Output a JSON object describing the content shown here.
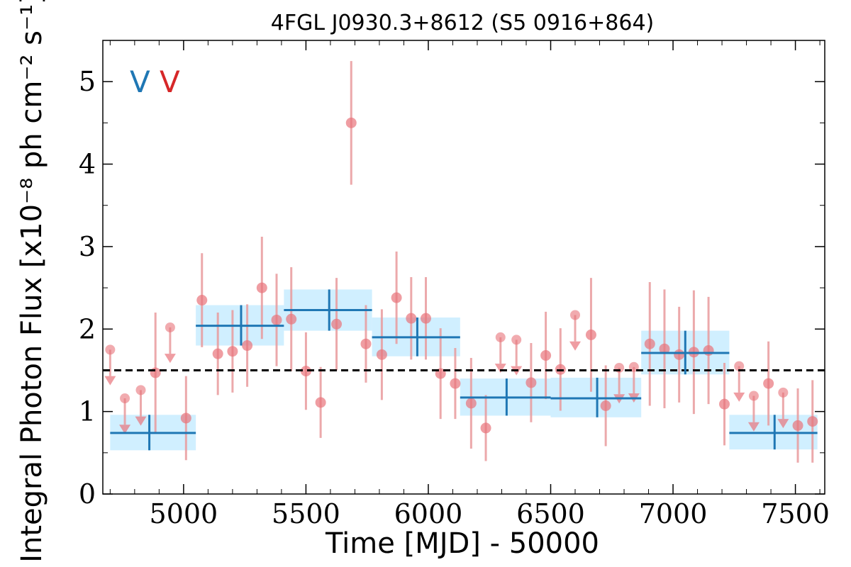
{
  "chart_data": {
    "type": "scatter",
    "title": "4FGL J0930.3+8612 (S5 0916+864)",
    "xlabel": "Time [MJD] - 50000",
    "ylabel": "Integral Photon Flux [x10⁻⁸ ph cm⁻² s⁻¹]",
    "xlim": [
      4670,
      7620
    ],
    "ylim": [
      0,
      5.5
    ],
    "xticks": [
      5000,
      5500,
      6000,
      6500,
      7000,
      7500
    ],
    "yticks": [
      0,
      1,
      2,
      3,
      4,
      5
    ],
    "grid": false,
    "mean_flux": 1.5,
    "colors": {
      "points": "#e8737a",
      "errorbars": "#e99a9c",
      "binned": "#1f77b4",
      "binned_band": "#cdeeff",
      "mean_line": "#000000"
    },
    "legend": {
      "position": "top-left",
      "entries": [
        {
          "label": "V",
          "color": "#1f77b4"
        },
        {
          "label": "V",
          "color": "#d62728"
        }
      ]
    },
    "series": [
      {
        "kind": "points",
        "points": [
          {
            "x": 5075,
            "y": 2.35,
            "err": 0.57
          },
          {
            "x": 5140,
            "y": 1.7,
            "err": 0.5
          },
          {
            "x": 5200,
            "y": 1.73,
            "err": 0.5
          },
          {
            "x": 5260,
            "y": 1.8,
            "err": 0.5
          },
          {
            "x": 5320,
            "y": 2.5,
            "err": 0.62
          },
          {
            "x": 5380,
            "y": 2.11,
            "err": 0.56
          },
          {
            "x": 5440,
            "y": 2.12,
            "err": 0.63
          },
          {
            "x": 5500,
            "y": 1.49,
            "err": 0.47
          },
          {
            "x": 5560,
            "y": 1.11,
            "err": 0.43
          },
          {
            "x": 5625,
            "y": 2.06,
            "err": 0.56
          },
          {
            "x": 5685,
            "y": 4.5,
            "err": 0.75
          },
          {
            "x": 5745,
            "y": 1.82,
            "err": 0.47
          },
          {
            "x": 5810,
            "y": 1.69,
            "err": 0.55
          },
          {
            "x": 5870,
            "y": 2.38,
            "err": 0.56
          },
          {
            "x": 5930,
            "y": 2.13,
            "err": 0.5
          },
          {
            "x": 5990,
            "y": 2.13,
            "err": 0.5
          },
          {
            "x": 6050,
            "y": 1.46,
            "err": 0.55
          },
          {
            "x": 6110,
            "y": 1.34,
            "err": 0.43
          },
          {
            "x": 6175,
            "y": 1.1,
            "err": 0.55
          },
          {
            "x": 6235,
            "y": 0.8,
            "err": 0.4
          },
          {
            "x": 6420,
            "y": 1.35,
            "err": 0.48
          },
          {
            "x": 6480,
            "y": 1.68,
            "err": 0.53
          },
          {
            "x": 6540,
            "y": 1.51,
            "err": 0.5
          },
          {
            "x": 6665,
            "y": 1.93,
            "err": 0.69
          },
          {
            "x": 6725,
            "y": 1.07,
            "err": 0.49
          },
          {
            "x": 6905,
            "y": 1.82,
            "err": 0.75
          },
          {
            "x": 6965,
            "y": 1.76,
            "err": 0.72
          },
          {
            "x": 7025,
            "y": 1.69,
            "err": 0.58
          },
          {
            "x": 7085,
            "y": 1.72,
            "err": 0.75
          },
          {
            "x": 7145,
            "y": 1.74,
            "err": 0.65
          },
          {
            "x": 7210,
            "y": 1.09,
            "err": 0.5
          },
          {
            "x": 7390,
            "y": 1.34,
            "err": 0.51
          },
          {
            "x": 7510,
            "y": 0.83,
            "err": 0.45
          },
          {
            "x": 7570,
            "y": 0.88,
            "err": 0.5
          }
        ]
      },
      {
        "kind": "upper_limits",
        "points": [
          {
            "x": 4700,
            "y": 1.75
          },
          {
            "x": 4760,
            "y": 1.16
          },
          {
            "x": 4825,
            "y": 1.26
          },
          {
            "x": 4945,
            "y": 2.02
          },
          {
            "x": 6295,
            "y": 1.9
          },
          {
            "x": 6360,
            "y": 1.87
          },
          {
            "x": 6600,
            "y": 2.17
          },
          {
            "x": 6780,
            "y": 1.53
          },
          {
            "x": 6840,
            "y": 1.54
          },
          {
            "x": 7270,
            "y": 1.55
          },
          {
            "x": 7330,
            "y": 1.19
          },
          {
            "x": 7450,
            "y": 1.23
          }
        ]
      },
      {
        "kind": "points_extra_errorbars",
        "points": [
          {
            "x": 4885,
            "y": 1.47,
            "err": 0.73
          },
          {
            "x": 5010,
            "y": 0.92,
            "err": 0.51
          }
        ]
      },
      {
        "kind": "binned",
        "bins": [
          {
            "x0": 4700,
            "x1": 5050,
            "xc": 4860,
            "y": 0.74,
            "ylo": 0.53,
            "yhi": 0.96
          },
          {
            "x0": 5050,
            "x1": 5410,
            "xc": 5235,
            "y": 2.04,
            "ylo": 1.8,
            "yhi": 2.29
          },
          {
            "x0": 5410,
            "x1": 5770,
            "xc": 5595,
            "y": 2.23,
            "ylo": 1.98,
            "yhi": 2.48
          },
          {
            "x0": 5770,
            "x1": 6130,
            "xc": 5955,
            "y": 1.9,
            "ylo": 1.67,
            "yhi": 2.14
          },
          {
            "x0": 6130,
            "x1": 6500,
            "xc": 6320,
            "y": 1.17,
            "ylo": 0.95,
            "yhi": 1.4
          },
          {
            "x0": 6500,
            "x1": 6870,
            "xc": 6690,
            "y": 1.16,
            "ylo": 0.93,
            "yhi": 1.41
          },
          {
            "x0": 6870,
            "x1": 7230,
            "xc": 7050,
            "y": 1.71,
            "ylo": 1.45,
            "yhi": 1.98
          },
          {
            "x0": 7230,
            "x1": 7590,
            "xc": 7415,
            "y": 0.74,
            "ylo": 0.54,
            "yhi": 0.96
          }
        ]
      }
    ]
  }
}
